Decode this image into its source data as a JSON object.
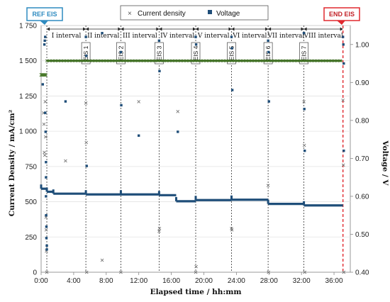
{
  "chart_data": {
    "type": "scatter",
    "xlabel": "Elapsed time / hh:mm",
    "ylabel_left": "Current Density / mA/cm²",
    "ylabel_right": "Voltage / V",
    "x_unit": "hours",
    "x_ticks": [
      "0:00",
      "4:00",
      "8:00",
      "12:00",
      "16:00",
      "20:00",
      "24:00",
      "28:00",
      "32:00",
      "36:00"
    ],
    "y_left_ticks": [
      "0",
      "250",
      "500",
      "750",
      "1 000",
      "1 250",
      "1 500",
      "1 750"
    ],
    "y_right_ticks": [
      "0.40",
      "0.50",
      "0.60",
      "0.70",
      "0.80",
      "0.90",
      "1.00"
    ],
    "xlim": [
      0,
      38
    ],
    "ylim_left": [
      0,
      1750
    ],
    "ylim_right": [
      0.4,
      1.05
    ],
    "legend": {
      "position": "top",
      "items": [
        "Current density",
        "Voltage"
      ]
    },
    "colors": {
      "current_density": "#4a7a2c",
      "voltage": "#1f4e79",
      "end_line": "#e0282e",
      "ref_badge": "#2e8bc0"
    },
    "ref_label": "REF EIS",
    "end_label": "END EIS",
    "end_x": 37.1,
    "eis_markers": [
      {
        "label": "EIS 1",
        "x": 5.5
      },
      {
        "label": "EIS 2",
        "x": 9.8
      },
      {
        "label": "EIS 3",
        "x": 14.5
      },
      {
        "label": "EIS 4",
        "x": 19.0
      },
      {
        "label": "EIS 5",
        "x": 23.4
      },
      {
        "label": "EIS 6",
        "x": 27.9
      },
      {
        "label": "EIS 7",
        "x": 32.3
      }
    ],
    "intervals": [
      {
        "label": "I interval",
        "start": 0.7,
        "end": 5.5
      },
      {
        "label": "II interval",
        "start": 5.5,
        "end": 9.8
      },
      {
        "label": "III interval",
        "start": 9.8,
        "end": 14.5
      },
      {
        "label": "IV interval",
        "start": 14.5,
        "end": 19.0
      },
      {
        "label": "V interval",
        "start": 19.0,
        "end": 23.4
      },
      {
        "label": "VI interval",
        "start": 23.4,
        "end": 27.9
      },
      {
        "label": "VII interval",
        "start": 27.9,
        "end": 32.3
      },
      {
        "label": "VIII interval",
        "start": 32.3,
        "end": 37.1
      }
    ],
    "current_density": {
      "baseline": [
        {
          "x_start": 0.0,
          "x_end": 0.6,
          "y": 1400
        }
      ],
      "plateau": {
        "x_start": 0.7,
        "x_end": 37.0,
        "y": 1500
      },
      "scatter": [
        [
          0.3,
          1130
        ],
        [
          0.35,
          1050
        ],
        [
          0.4,
          850
        ],
        [
          0.45,
          830
        ],
        [
          0.5,
          1210
        ],
        [
          0.55,
          960
        ],
        [
          0.6,
          390
        ],
        [
          0.62,
          300
        ],
        [
          0.65,
          150
        ],
        [
          0.7,
          0
        ],
        [
          3.0,
          790
        ],
        [
          5.5,
          1200
        ],
        [
          5.55,
          920
        ],
        [
          5.6,
          0
        ],
        [
          7.5,
          85
        ],
        [
          9.8,
          0
        ],
        [
          12.0,
          1210
        ],
        [
          14.5,
          290
        ],
        [
          14.55,
          310
        ],
        [
          16.8,
          1140
        ],
        [
          19.0,
          0
        ],
        [
          19.05,
          40
        ],
        [
          23.4,
          310
        ],
        [
          23.45,
          300
        ],
        [
          27.9,
          615
        ],
        [
          27.95,
          0
        ],
        [
          32.3,
          1210
        ],
        [
          32.35,
          900
        ],
        [
          32.4,
          0
        ],
        [
          37.1,
          1220
        ],
        [
          37.15,
          760
        ],
        [
          37.2,
          0
        ]
      ]
    },
    "voltage": {
      "segments": [
        {
          "x_start": 0.0,
          "x_end": 0.6,
          "y": 0.62
        },
        {
          "x_start": 0.7,
          "x_end": 1.5,
          "y": 0.612
        },
        {
          "x_start": 1.5,
          "x_end": 5.5,
          "y": 0.607
        },
        {
          "x_start": 5.5,
          "x_end": 9.8,
          "y": 0.605
        },
        {
          "x_start": 9.8,
          "x_end": 14.5,
          "y": 0.605
        },
        {
          "x_start": 14.5,
          "x_end": 16.6,
          "y": 0.603
        },
        {
          "x_start": 16.6,
          "x_end": 19.0,
          "y": 0.587
        },
        {
          "x_start": 19.0,
          "x_end": 23.4,
          "y": 0.59
        },
        {
          "x_start": 23.4,
          "x_end": 27.9,
          "y": 0.591
        },
        {
          "x_start": 27.9,
          "x_end": 32.3,
          "y": 0.58
        },
        {
          "x_start": 32.3,
          "x_end": 37.1,
          "y": 0.576
        }
      ],
      "scatter": [
        [
          0.2,
          0.895
        ],
        [
          0.4,
          1.0
        ],
        [
          0.45,
          1.01
        ],
        [
          0.5,
          1.02
        ],
        [
          0.5,
          0.82
        ],
        [
          0.55,
          0.77
        ],
        [
          0.6,
          0.69
        ],
        [
          0.6,
          0.65
        ],
        [
          0.6,
          0.6
        ],
        [
          0.62,
          0.55
        ],
        [
          0.65,
          0.52
        ],
        [
          0.65,
          0.49
        ],
        [
          0.7,
          0.47
        ],
        [
          0.7,
          0.46
        ],
        [
          3.0,
          0.85
        ],
        [
          5.5,
          1.02
        ],
        [
          5.55,
          0.97
        ],
        [
          5.6,
          0.68
        ],
        [
          7.5,
          1.03
        ],
        [
          9.8,
          0.98
        ],
        [
          9.85,
          0.84
        ],
        [
          12.0,
          0.76
        ],
        [
          14.5,
          1.01
        ],
        [
          14.55,
          0.93
        ],
        [
          16.8,
          0.77
        ],
        [
          19.0,
          1.02
        ],
        [
          19.05,
          1.0
        ],
        [
          23.4,
          1.02
        ],
        [
          23.45,
          0.99
        ],
        [
          23.5,
          0.88
        ],
        [
          27.9,
          1.01
        ],
        [
          27.95,
          0.98
        ],
        [
          28.0,
          0.85
        ],
        [
          32.3,
          1.03
        ],
        [
          32.35,
          0.83
        ],
        [
          32.4,
          0.72
        ],
        [
          37.1,
          1.02
        ],
        [
          37.15,
          1.0
        ],
        [
          37.2,
          0.95
        ],
        [
          37.2,
          0.72
        ]
      ]
    }
  }
}
